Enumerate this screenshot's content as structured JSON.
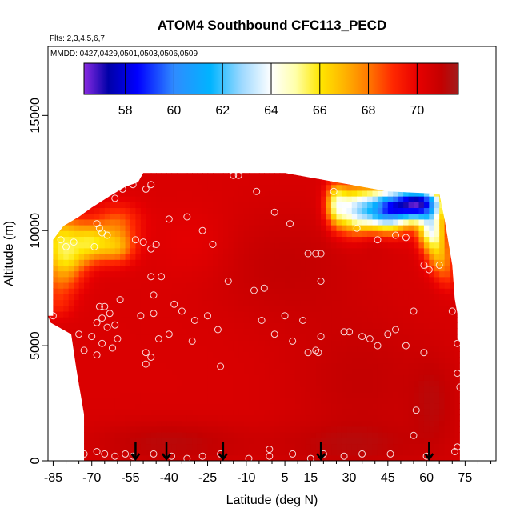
{
  "chart_data": {
    "type": "heatmap",
    "title": "ATOM4 Southbound CFC113_PECD",
    "notes": [
      "Flts: 2,3,4,5,6,7",
      "MMDD: 0427,0429,0501,0503,0506,0509"
    ],
    "xlabel": "Latitude (deg N)",
    "ylabel": "Altitude (m)",
    "xlim": [
      -87,
      87
    ],
    "ylim": [
      0,
      18000
    ],
    "xticks": [
      -85,
      -70,
      -55,
      -40,
      -25,
      -10,
      5,
      15,
      30,
      45,
      60,
      75
    ],
    "xtick_labels": [
      "-85",
      "-70",
      "-55",
      "-40",
      "-25",
      "-10",
      "5",
      "15",
      "30",
      "45",
      "60",
      "75"
    ],
    "xminor_ticks": [
      -80,
      -75,
      -65,
      -60,
      -50,
      -45,
      -35,
      -30,
      -20,
      -15,
      -5,
      0,
      10,
      20,
      25,
      35,
      40,
      50,
      55,
      65,
      70,
      80,
      85
    ],
    "yticks": [
      0,
      5000,
      10000,
      15000
    ],
    "ytick_labels": [
      "0",
      "5000",
      "10000",
      "15000"
    ],
    "colorbar": {
      "range": [
        56.3,
        71.7
      ],
      "ticks": [
        58,
        60,
        62,
        64,
        66,
        68,
        70
      ],
      "tick_labels": [
        "58",
        "60",
        "62",
        "64",
        "66",
        "68",
        "70"
      ],
      "stops": [
        [
          56.3,
          "#8a2be2"
        ],
        [
          57.3,
          "#0000a8"
        ],
        [
          58.5,
          "#0000ff"
        ],
        [
          60.0,
          "#2f8bff"
        ],
        [
          61.5,
          "#00b4ff"
        ],
        [
          62.8,
          "#9ed9ff"
        ],
        [
          64.0,
          "#ffffff"
        ],
        [
          65.0,
          "#ffffaa"
        ],
        [
          66.0,
          "#ffe800"
        ],
        [
          67.0,
          "#ffb400"
        ],
        [
          68.0,
          "#ff7800"
        ],
        [
          69.0,
          "#ff2800"
        ],
        [
          70.0,
          "#e80000"
        ],
        [
          71.0,
          "#c40000"
        ],
        [
          71.7,
          "#a01c1c"
        ]
      ]
    },
    "profile_markers_lat": [
      -53,
      -41,
      -19,
      19,
      61
    ],
    "field_region": {
      "boundary": [
        [
          -87,
          6300
        ],
        [
          -85,
          6300
        ],
        [
          -85,
          9600
        ],
        [
          -81,
          10200
        ],
        [
          -75,
          10600
        ],
        [
          -70,
          11000
        ],
        [
          -63,
          11500
        ],
        [
          -57,
          11900
        ],
        [
          -52,
          12100
        ],
        [
          -50,
          12500
        ],
        [
          5,
          12500
        ],
        [
          20,
          12200
        ],
        [
          45,
          11700
        ],
        [
          65,
          11600
        ],
        [
          67,
          10500
        ],
        [
          70,
          8500
        ],
        [
          71,
          7000
        ],
        [
          72,
          6400
        ],
        [
          72,
          5300
        ],
        [
          73,
          5200
        ],
        [
          73,
          0
        ],
        [
          -73,
          0
        ],
        [
          -73,
          2000
        ],
        [
          -76,
          4000
        ],
        [
          -78,
          5500
        ],
        [
          -86,
          6000
        ]
      ],
      "baseline_value": 70.4,
      "anomalies": [
        {
          "lat": -82,
          "alt": 9700,
          "value": 66.4,
          "rlat": 9,
          "ralt": 1000
        },
        {
          "lat": -70,
          "alt": 9500,
          "value": 67.0,
          "rlat": 7,
          "ralt": 800
        },
        {
          "lat": -60,
          "alt": 9300,
          "value": 67.5,
          "rlat": 7,
          "ralt": 700
        },
        {
          "lat": -80,
          "alt": 8700,
          "value": 67.8,
          "rlat": 8,
          "ralt": 700
        },
        {
          "lat": -82,
          "alt": 7800,
          "value": 68.6,
          "rlat": 8,
          "ralt": 700
        },
        {
          "lat": -83,
          "alt": 6800,
          "value": 69.3,
          "rlat": 6,
          "ralt": 600
        },
        {
          "lat": -60,
          "alt": 10400,
          "value": 68.5,
          "rlat": 9,
          "ralt": 800
        },
        {
          "lat": 25,
          "alt": 11200,
          "value": 66.5,
          "rlat": 4,
          "ralt": 900
        },
        {
          "lat": 33,
          "alt": 10900,
          "value": 63.8,
          "rlat": 8,
          "ralt": 1000
        },
        {
          "lat": 45,
          "alt": 10900,
          "value": 61.0,
          "rlat": 8,
          "ralt": 900
        },
        {
          "lat": 57,
          "alt": 11200,
          "value": 57.8,
          "rlat": 9,
          "ralt": 700
        },
        {
          "lat": 62,
          "alt": 10000,
          "value": 64.5,
          "rlat": 5,
          "ralt": 800
        },
        {
          "lat": 65,
          "alt": 8900,
          "value": 67.5,
          "rlat": 5,
          "ralt": 800
        },
        {
          "lat": 68,
          "alt": 8000,
          "value": 69.3,
          "rlat": 4,
          "ralt": 700
        },
        {
          "lat": 40,
          "alt": 9800,
          "value": 71.2,
          "rlat": 8,
          "ralt": 700
        },
        {
          "lat": 5,
          "alt": 8500,
          "value": 71.0,
          "rlat": 30,
          "ralt": 2500
        },
        {
          "lat": 35,
          "alt": 3500,
          "value": 71.0,
          "rlat": 28,
          "ralt": 3000
        },
        {
          "lat": -40,
          "alt": 800,
          "value": 71.2,
          "rlat": 30,
          "ralt": 900
        },
        {
          "lat": 30,
          "alt": 700,
          "value": 71.0,
          "rlat": 30,
          "ralt": 900
        },
        {
          "lat": 63,
          "alt": 2500,
          "value": 71.0,
          "rlat": 9,
          "ralt": 2000
        },
        {
          "lat": -30,
          "alt": 9500,
          "value": 70.0,
          "rlat": 15,
          "ralt": 1500
        }
      ]
    },
    "sample_points": [
      [
        -85,
        6300
      ],
      [
        -82,
        9600
      ],
      [
        -77,
        9500
      ],
      [
        -80,
        9300
      ],
      [
        -75,
        5500
      ],
      [
        -73,
        4800
      ],
      [
        -68,
        10300
      ],
      [
        -67,
        10100
      ],
      [
        -66,
        9900
      ],
      [
        -64,
        9800
      ],
      [
        -69,
        9300
      ],
      [
        -67,
        6700
      ],
      [
        -65,
        6700
      ],
      [
        -63,
        6400
      ],
      [
        -66,
        6200
      ],
      [
        -68,
        6000
      ],
      [
        -64,
        5800
      ],
      [
        -61,
        5900
      ],
      [
        -70,
        5400
      ],
      [
        -66,
        5100
      ],
      [
        -68,
        4600
      ],
      [
        -62,
        4900
      ],
      [
        -60,
        5300
      ],
      [
        -59,
        7000
      ],
      [
        -61,
        11400
      ],
      [
        -58,
        11800
      ],
      [
        -53,
        9600
      ],
      [
        -50,
        9500
      ],
      [
        -47,
        9200
      ],
      [
        -45,
        9400
      ],
      [
        -54,
        12000
      ],
      [
        -49,
        11800
      ],
      [
        -47,
        12000
      ],
      [
        -47,
        8000
      ],
      [
        -43,
        8000
      ],
      [
        -46,
        7200
      ],
      [
        -51,
        6300
      ],
      [
        -46,
        6400
      ],
      [
        -49,
        4700
      ],
      [
        -47,
        4500
      ],
      [
        -49,
        4200
      ],
      [
        -44,
        5300
      ],
      [
        -40,
        5500
      ],
      [
        -40,
        10500
      ],
      [
        -33,
        10600
      ],
      [
        -27,
        10000
      ],
      [
        -38,
        6800
      ],
      [
        -35,
        6500
      ],
      [
        -30,
        6100
      ],
      [
        -25,
        6300
      ],
      [
        -31,
        5200
      ],
      [
        -21,
        5700
      ],
      [
        -20,
        4100
      ],
      [
        -23,
        9400
      ],
      [
        -17,
        7800
      ],
      [
        -15,
        12400
      ],
      [
        -13,
        12400
      ],
      [
        -6,
        11700
      ],
      [
        1,
        10800
      ],
      [
        -3,
        7500
      ],
      [
        -7,
        7400
      ],
      [
        -4,
        6100
      ],
      [
        1,
        5500
      ],
      [
        7,
        10300
      ],
      [
        14,
        9000
      ],
      [
        17,
        9000
      ],
      [
        19,
        9000
      ],
      [
        19,
        7800
      ],
      [
        5,
        6300
      ],
      [
        8,
        5200
      ],
      [
        12,
        6100
      ],
      [
        14,
        4700
      ],
      [
        18,
        4700
      ],
      [
        19,
        5400
      ],
      [
        17,
        4800
      ],
      [
        24,
        11700
      ],
      [
        33,
        10100
      ],
      [
        41,
        9600
      ],
      [
        48,
        9800
      ],
      [
        52,
        9700
      ],
      [
        59,
        8500
      ],
      [
        61,
        8300
      ],
      [
        65,
        8500
      ],
      [
        28,
        5600
      ],
      [
        30,
        5600
      ],
      [
        35,
        5400
      ],
      [
        38,
        5300
      ],
      [
        41,
        5000
      ],
      [
        45,
        5500
      ],
      [
        48,
        5700
      ],
      [
        52,
        5000
      ],
      [
        55,
        6500
      ],
      [
        59,
        4700
      ],
      [
        70,
        6500
      ],
      [
        72,
        5100
      ],
      [
        72,
        3800
      ],
      [
        73,
        3200
      ],
      [
        56,
        2200
      ],
      [
        55,
        1100
      ],
      [
        -78,
        200
      ],
      [
        -73,
        300
      ],
      [
        -68,
        400
      ],
      [
        -65,
        300
      ],
      [
        -61,
        200
      ],
      [
        -57,
        300
      ],
      [
        -54,
        200
      ],
      [
        -46,
        300
      ],
      [
        -39,
        200
      ],
      [
        -33,
        100
      ],
      [
        -27,
        200
      ],
      [
        -20,
        300
      ],
      [
        -9,
        100
      ],
      [
        -1,
        500
      ],
      [
        -1,
        200
      ],
      [
        8,
        300
      ],
      [
        15,
        100
      ],
      [
        20,
        300
      ],
      [
        28,
        200
      ],
      [
        35,
        300
      ],
      [
        46,
        300
      ],
      [
        60,
        200
      ],
      [
        71,
        400
      ],
      [
        72,
        600
      ]
    ]
  }
}
